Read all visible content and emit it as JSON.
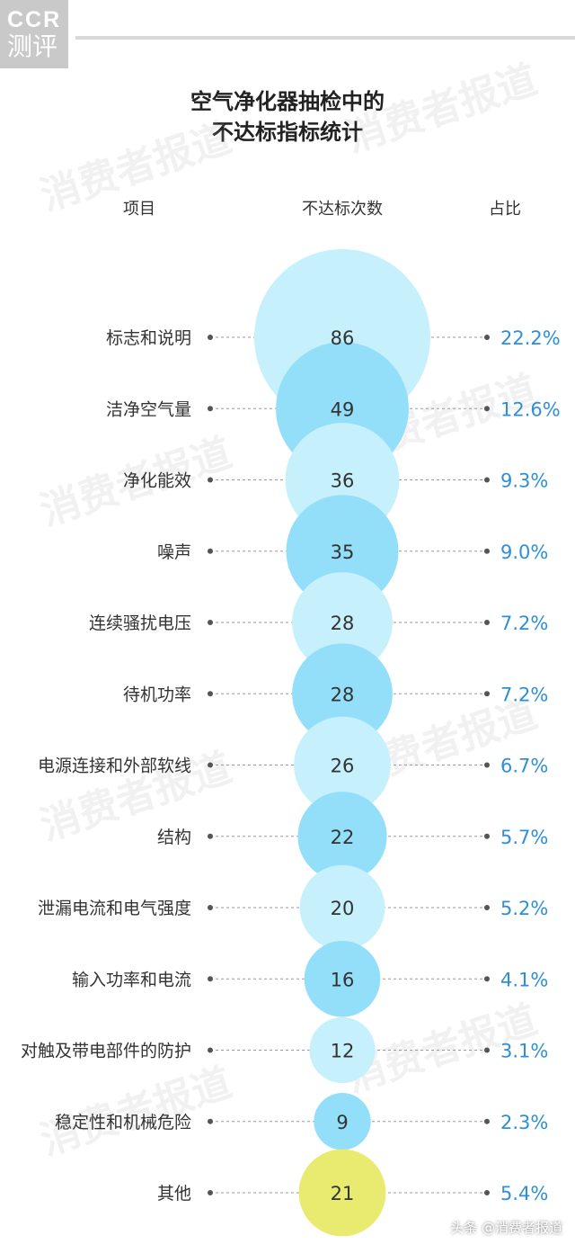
{
  "logo": {
    "line1": "CCR",
    "line2": "测评"
  },
  "title": {
    "line1": "空气净化器抽检中的",
    "line2": "不达标指标统计"
  },
  "headers": {
    "item": "项目",
    "count": "不达标次数",
    "ratio": "占比"
  },
  "watermark": "消费者报道",
  "footer": "头条 @消费者报道",
  "colors": {
    "bubble_dark": "#93dff9",
    "bubble_light": "#c6f0fc",
    "bubble_other": "#e8eb6f",
    "ratio_text": "#2e8fd6",
    "leader_line": "#9a9a9a"
  },
  "chart_data": {
    "type": "bubble",
    "title": "空气净化器抽检中的不达标指标统计",
    "columns": [
      "项目",
      "不达标次数",
      "占比"
    ],
    "rows": [
      {
        "item": "标志和说明",
        "count": 86,
        "ratio": "22.2%",
        "shade": "light"
      },
      {
        "item": "洁净空气量",
        "count": 49,
        "ratio": "12.6%",
        "shade": "dark"
      },
      {
        "item": "净化能效",
        "count": 36,
        "ratio": "9.3%",
        "shade": "light"
      },
      {
        "item": "噪声",
        "count": 35,
        "ratio": "9.0%",
        "shade": "dark"
      },
      {
        "item": "连续骚扰电压",
        "count": 28,
        "ratio": "7.2%",
        "shade": "light"
      },
      {
        "item": "待机功率",
        "count": 28,
        "ratio": "7.2%",
        "shade": "dark"
      },
      {
        "item": "电源连接和外部软线",
        "count": 26,
        "ratio": "6.7%",
        "shade": "light"
      },
      {
        "item": "结构",
        "count": 22,
        "ratio": "5.7%",
        "shade": "dark"
      },
      {
        "item": "泄漏电流和电气强度",
        "count": 20,
        "ratio": "5.2%",
        "shade": "light"
      },
      {
        "item": "输入功率和电流",
        "count": 16,
        "ratio": "4.1%",
        "shade": "dark"
      },
      {
        "item": "对触及带电部件的防护",
        "count": 12,
        "ratio": "3.1%",
        "shade": "light"
      },
      {
        "item": "稳定性和机械危险",
        "count": 9,
        "ratio": "2.3%",
        "shade": "dark"
      },
      {
        "item": "其他",
        "count": 21,
        "ratio": "5.4%",
        "shade": "other"
      }
    ]
  }
}
